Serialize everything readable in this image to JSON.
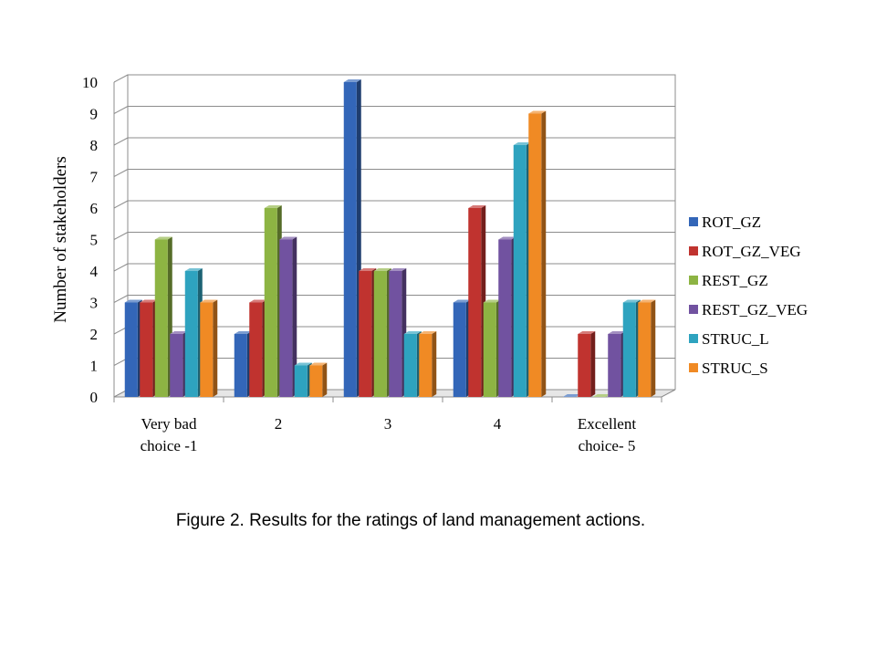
{
  "caption": "Figure 2. Results for the ratings of land management actions.",
  "chart_data": {
    "type": "bar",
    "style": "3d-clustered-column",
    "title": "",
    "xlabel": "",
    "ylabel": "Number of stakeholders",
    "ylim": [
      0,
      10
    ],
    "yticks": [
      0,
      1,
      2,
      3,
      4,
      5,
      6,
      7,
      8,
      9,
      10
    ],
    "grid": true,
    "legend": "right",
    "categories": [
      [
        "Very bad",
        "choice -1"
      ],
      [
        "2"
      ],
      [
        "3"
      ],
      [
        "4"
      ],
      [
        "Excellent",
        "choice-  5"
      ]
    ],
    "series": [
      {
        "name": "ROT_GZ",
        "color": "#3366B8",
        "values": [
          3,
          2,
          10,
          3,
          0
        ]
      },
      {
        "name": "ROT_GZ_VEG",
        "color": "#C0332F",
        "values": [
          3,
          3,
          4,
          6,
          2
        ]
      },
      {
        "name": "REST_GZ",
        "color": "#8DB443",
        "values": [
          5,
          6,
          4,
          3,
          0
        ]
      },
      {
        "name": "REST_GZ_VEG",
        "color": "#7152A0",
        "values": [
          2,
          5,
          4,
          5,
          2
        ]
      },
      {
        "name": "STRUC_L",
        "color": "#2EA3BF",
        "values": [
          4,
          1,
          2,
          8,
          3
        ]
      },
      {
        "name": "STRUC_S",
        "color": "#F08A24",
        "values": [
          3,
          1,
          2,
          9,
          3
        ]
      }
    ]
  }
}
